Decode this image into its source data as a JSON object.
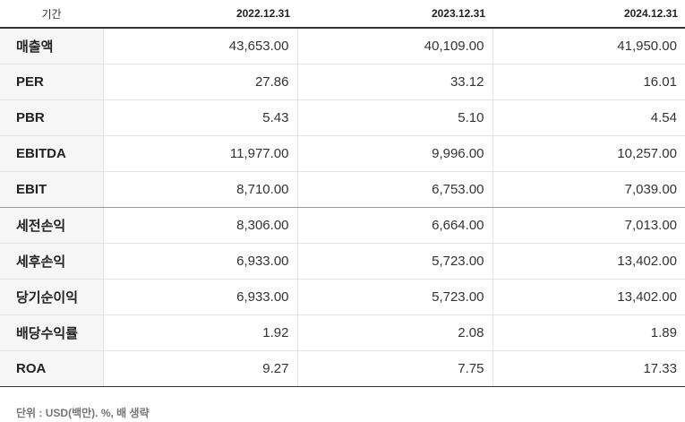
{
  "table": {
    "header": {
      "label": "기간",
      "periods": [
        "2022.12.31",
        "2023.12.31",
        "2024.12.31"
      ]
    },
    "rows": [
      {
        "label": "매출액",
        "values": [
          "43,653.00",
          "40,109.00",
          "41,950.00"
        ]
      },
      {
        "label": "PER",
        "values": [
          "27.86",
          "33.12",
          "16.01"
        ]
      },
      {
        "label": "PBR",
        "values": [
          "5.43",
          "5.10",
          "4.54"
        ]
      },
      {
        "label": "EBITDA",
        "values": [
          "11,977.00",
          "9,996.00",
          "10,257.00"
        ]
      },
      {
        "label": "EBIT",
        "values": [
          "8,710.00",
          "6,753.00",
          "7,039.00"
        ]
      },
      {
        "label": "세전손익",
        "values": [
          "8,306.00",
          "6,664.00",
          "7,013.00"
        ]
      },
      {
        "label": "세후손익",
        "values": [
          "6,933.00",
          "5,723.00",
          "13,402.00"
        ]
      },
      {
        "label": "당기순이익",
        "values": [
          "6,933.00",
          "5,723.00",
          "13,402.00"
        ]
      },
      {
        "label": "배당수익률",
        "values": [
          "1.92",
          "2.08",
          "1.89"
        ]
      },
      {
        "label": "ROA",
        "values": [
          "9.27",
          "7.75",
          "17.33"
        ]
      }
    ]
  },
  "footnote": "단위 : USD(백만). %, 배 생략"
}
